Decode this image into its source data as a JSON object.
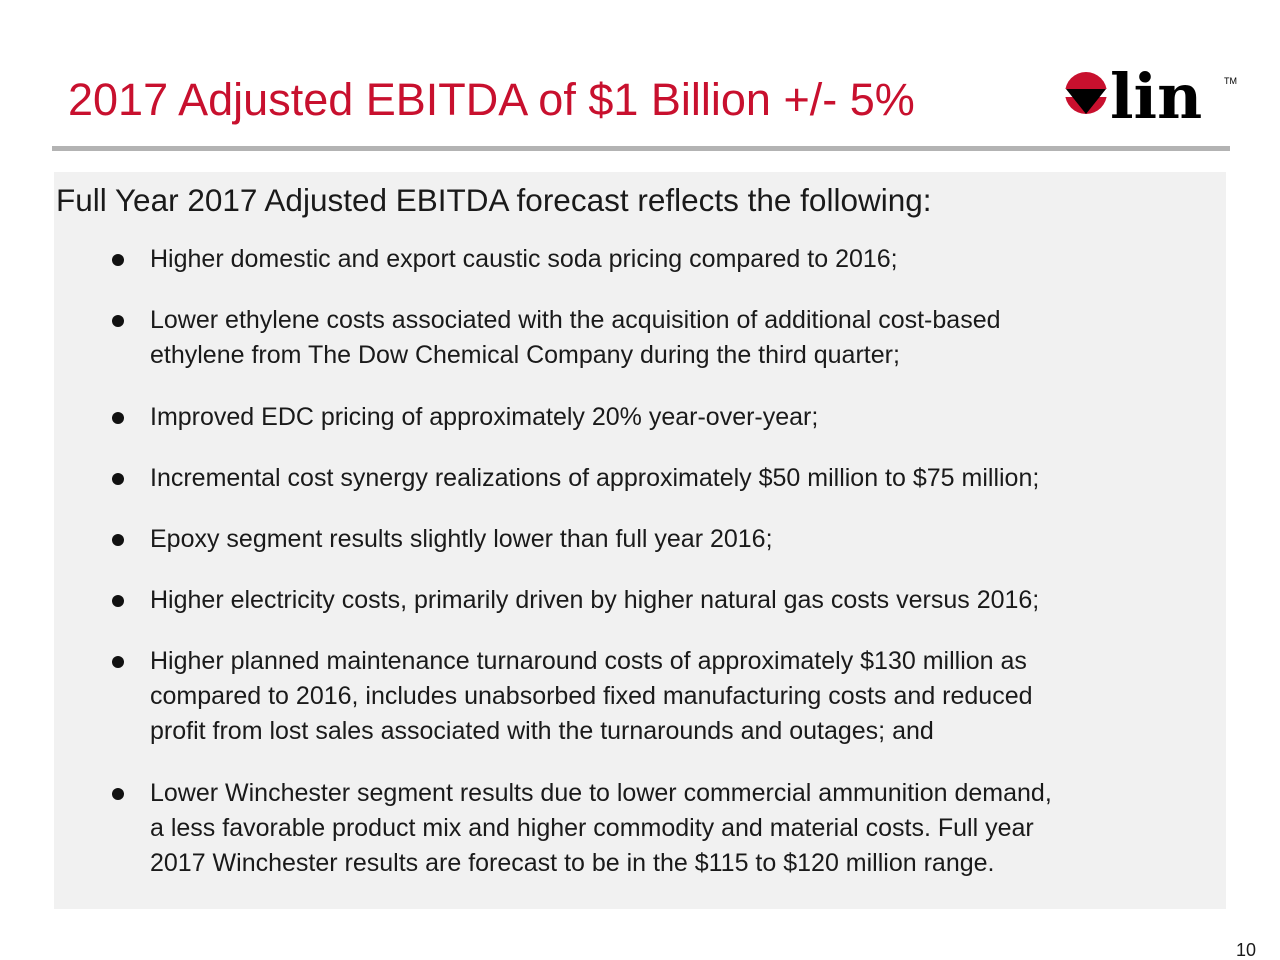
{
  "slide": {
    "title": "2017 Adjusted EBITDA of $1 Billion +/- 5%",
    "logo": {
      "text": "lin",
      "trademark": "TM",
      "color": "#c8102e"
    },
    "intro": "Full Year 2017 Adjusted EBITDA forecast reflects the following:",
    "bullets": [
      {
        "lines": [
          "Higher domestic and export caustic soda pricing compared to 2016;"
        ]
      },
      {
        "lines": [
          "Lower ethylene costs associated with the acquisition of additional cost-based",
          "ethylene from The Dow Chemical Company during the third quarter;"
        ]
      },
      {
        "lines": [
          "Improved EDC pricing of approximately 20% year-over-year;"
        ]
      },
      {
        "lines": [
          "Incremental cost synergy realizations of approximately $50 million to $75 million;"
        ]
      },
      {
        "lines": [
          "Epoxy segment results slightly lower than full year 2016;"
        ]
      },
      {
        "lines": [
          "Higher electricity costs, primarily driven by higher natural gas costs versus 2016;"
        ]
      },
      {
        "lines": [
          "Higher planned maintenance turnaround costs of approximately $130 million as",
          "compared to 2016, includes unabsorbed fixed manufacturing costs and reduced",
          "profit from lost sales associated with the turnarounds and outages; and"
        ]
      },
      {
        "lines": [
          "Lower Winchester segment results due to lower commercial ammunition demand,",
          "a less favorable product mix and higher commodity and material costs. Full year",
          "2017 Winchester results are forecast to be in the $115 to $120 million range."
        ]
      }
    ],
    "page_number": "10"
  }
}
